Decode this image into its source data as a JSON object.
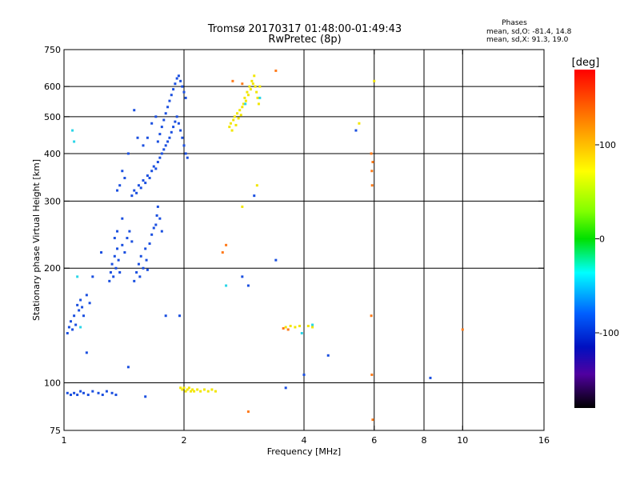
{
  "header": {
    "title_line1": "Tromsø 20170317 01:48:00-01:49:43",
    "title_line2": "RwPretec (8p)"
  },
  "stats": {
    "heading": "Phases",
    "line_o": "mean, sd,O: -81.4, 14.8",
    "line_x": "mean, sd,X:  91.3, 19.0"
  },
  "colorbar": {
    "label": "[deg]",
    "ticks": [
      {
        "value": 100,
        "label": "100"
      },
      {
        "value": 0,
        "label": "0"
      },
      {
        "value": -100,
        "label": "-100"
      }
    ],
    "range": [
      -180,
      180
    ],
    "colors": {
      "top": "#ff0000",
      "orange": "#ff8000",
      "yellow": "#ffff00",
      "green": "#00d000",
      "cyan": "#00ffff",
      "blue": "#0050ff",
      "violet": "#4000a0",
      "bottom": "#000000"
    }
  },
  "chart_data": {
    "type": "scatter",
    "xlabel": "Frequency [MHz]",
    "ylabel": "Stationary phase Virtual Height [km]",
    "xscale": "log",
    "yscale": "log",
    "xlim": [
      1,
      16
    ],
    "ylim": [
      75,
      750
    ],
    "x_ticks": [
      {
        "value": 1,
        "label": "1"
      },
      {
        "value": 2,
        "label": "2"
      },
      {
        "value": 4,
        "label": "4"
      },
      {
        "value": 6,
        "label": "6"
      },
      {
        "value": 8,
        "label": "8"
      },
      {
        "value": 10,
        "label": "10"
      },
      {
        "value": 16,
        "label": "16"
      }
    ],
    "y_ticks": [
      {
        "value": 75,
        "label": "75"
      },
      {
        "value": 100,
        "label": "100"
      },
      {
        "value": 200,
        "label": "200"
      },
      {
        "value": 300,
        "label": "300"
      },
      {
        "value": 400,
        "label": "400"
      },
      {
        "value": 500,
        "label": "500"
      },
      {
        "value": 600,
        "label": "600"
      },
      {
        "value": 750,
        "label": "750"
      }
    ],
    "x_gridlines": [
      2,
      4,
      6,
      8,
      10
    ],
    "y_gridlines": [
      100,
      200,
      300,
      400,
      500,
      600
    ],
    "series": [
      {
        "points": [
          [
            1.02,
            94
          ],
          [
            1.04,
            93
          ],
          [
            1.06,
            94
          ],
          [
            1.08,
            93
          ],
          [
            1.1,
            95
          ],
          [
            1.12,
            94
          ],
          [
            1.15,
            93
          ],
          [
            1.18,
            95
          ],
          [
            1.22,
            94
          ],
          [
            1.25,
            93
          ],
          [
            1.28,
            95
          ],
          [
            1.32,
            94
          ],
          [
            1.35,
            93
          ],
          [
            1.02,
            135
          ],
          [
            1.03,
            140
          ],
          [
            1.04,
            145
          ],
          [
            1.05,
            138
          ],
          [
            1.06,
            150
          ],
          [
            1.07,
            142
          ],
          [
            1.08,
            160
          ],
          [
            1.09,
            155
          ],
          [
            1.1,
            165
          ],
          [
            1.11,
            158
          ],
          [
            1.12,
            150
          ],
          [
            1.14,
            170
          ],
          [
            1.16,
            162
          ],
          [
            1.3,
            185
          ],
          [
            1.31,
            195
          ],
          [
            1.32,
            205
          ],
          [
            1.33,
            190
          ],
          [
            1.34,
            215
          ],
          [
            1.35,
            200
          ],
          [
            1.36,
            225
          ],
          [
            1.37,
            210
          ],
          [
            1.38,
            195
          ],
          [
            1.4,
            230
          ],
          [
            1.42,
            220
          ],
          [
            1.44,
            240
          ],
          [
            1.46,
            250
          ],
          [
            1.48,
            235
          ],
          [
            1.5,
            185
          ],
          [
            1.52,
            195
          ],
          [
            1.54,
            205
          ],
          [
            1.55,
            190
          ],
          [
            1.56,
            215
          ],
          [
            1.58,
            200
          ],
          [
            1.6,
            225
          ],
          [
            1.61,
            210
          ],
          [
            1.62,
            198
          ],
          [
            1.64,
            232
          ],
          [
            1.66,
            245
          ],
          [
            1.68,
            255
          ],
          [
            1.7,
            260
          ],
          [
            1.71,
            275
          ],
          [
            1.72,
            290
          ],
          [
            1.74,
            270
          ],
          [
            1.76,
            250
          ],
          [
            1.48,
            310
          ],
          [
            1.5,
            320
          ],
          [
            1.52,
            315
          ],
          [
            1.54,
            330
          ],
          [
            1.56,
            325
          ],
          [
            1.58,
            340
          ],
          [
            1.6,
            335
          ],
          [
            1.62,
            350
          ],
          [
            1.64,
            345
          ],
          [
            1.66,
            360
          ],
          [
            1.68,
            370
          ],
          [
            1.7,
            365
          ],
          [
            1.72,
            380
          ],
          [
            1.74,
            390
          ],
          [
            1.76,
            400
          ],
          [
            1.78,
            410
          ],
          [
            1.8,
            420
          ],
          [
            1.82,
            430
          ],
          [
            1.84,
            440
          ],
          [
            1.86,
            455
          ],
          [
            1.88,
            470
          ],
          [
            1.9,
            485
          ],
          [
            1.92,
            500
          ],
          [
            1.94,
            480
          ],
          [
            1.96,
            460
          ],
          [
            1.98,
            440
          ],
          [
            2.0,
            420
          ],
          [
            2.02,
            400
          ],
          [
            2.04,
            390
          ],
          [
            1.72,
            430
          ],
          [
            1.74,
            450
          ],
          [
            1.76,
            470
          ],
          [
            1.78,
            490
          ],
          [
            1.8,
            510
          ],
          [
            1.82,
            530
          ],
          [
            1.84,
            550
          ],
          [
            1.86,
            570
          ],
          [
            1.88,
            590
          ],
          [
            1.9,
            610
          ],
          [
            1.92,
            630
          ],
          [
            1.94,
            640
          ],
          [
            1.96,
            620
          ],
          [
            1.98,
            600
          ],
          [
            2.0,
            580
          ],
          [
            2.02,
            560
          ],
          [
            1.45,
            400
          ],
          [
            1.5,
            520
          ],
          [
            1.4,
            360
          ],
          [
            1.42,
            345
          ],
          [
            1.38,
            330
          ],
          [
            1.36,
            320
          ],
          [
            1.58,
            420
          ],
          [
            1.62,
            440
          ],
          [
            1.66,
            480
          ],
          [
            1.7,
            500
          ],
          [
            1.53,
            440
          ],
          [
            1.4,
            270
          ],
          [
            1.36,
            250
          ],
          [
            1.34,
            240
          ],
          [
            1.24,
            220
          ],
          [
            1.18,
            190
          ],
          [
            1.14,
            120
          ],
          [
            1.45,
            110
          ],
          [
            1.6,
            92
          ],
          [
            1.8,
            150
          ],
          [
            1.95,
            150
          ],
          [
            2.8,
            190
          ],
          [
            2.9,
            180
          ],
          [
            3.0,
            310
          ],
          [
            3.4,
            210
          ],
          [
            3.6,
            97
          ],
          [
            4.0,
            105
          ],
          [
            4.6,
            118
          ],
          [
            5.4,
            460
          ],
          [
            8.3,
            103
          ]
        ]
      },
      {
        "points": [
          [
            2.6,
            470
          ],
          [
            2.62,
            480
          ],
          [
            2.64,
            460
          ],
          [
            2.66,
            490
          ],
          [
            2.68,
            500
          ],
          [
            2.7,
            475
          ],
          [
            2.72,
            510
          ],
          [
            2.74,
            495
          ],
          [
            2.76,
            520
          ],
          [
            2.78,
            505
          ],
          [
            2.8,
            530
          ],
          [
            2.82,
            540
          ],
          [
            2.84,
            560
          ],
          [
            2.86,
            550
          ],
          [
            2.88,
            580
          ],
          [
            2.9,
            570
          ],
          [
            2.92,
            600
          ],
          [
            2.94,
            590
          ],
          [
            2.96,
            620
          ],
          [
            2.98,
            610
          ],
          [
            3.0,
            640
          ],
          [
            3.02,
            600
          ],
          [
            3.04,
            580
          ],
          [
            3.06,
            560
          ],
          [
            3.08,
            540
          ],
          [
            3.1,
            600
          ],
          [
            1.96,
            97
          ],
          [
            1.98,
            96
          ],
          [
            2.0,
            97
          ],
          [
            2.02,
            95
          ],
          [
            2.04,
            96
          ],
          [
            2.06,
            97
          ],
          [
            2.08,
            95
          ],
          [
            2.1,
            96
          ],
          [
            2.12,
            95
          ],
          [
            2.16,
            96
          ],
          [
            2.2,
            95
          ],
          [
            2.25,
            96
          ],
          [
            2.3,
            95
          ],
          [
            2.35,
            96
          ],
          [
            2.4,
            95
          ],
          [
            3.05,
            330
          ],
          [
            2.8,
            290
          ],
          [
            5.5,
            480
          ],
          [
            6.0,
            620
          ],
          [
            3.6,
            140
          ],
          [
            3.7,
            141
          ],
          [
            3.8,
            140
          ],
          [
            3.9,
            141
          ],
          [
            4.1,
            141
          ],
          [
            4.2,
            140
          ]
        ]
      },
      {
        "points": [
          [
            2.65,
            620
          ],
          [
            2.8,
            610
          ],
          [
            2.55,
            230
          ],
          [
            2.5,
            220
          ],
          [
            2.9,
            84
          ],
          [
            3.4,
            660
          ],
          [
            3.55,
            139
          ],
          [
            3.65,
            138
          ],
          [
            5.9,
            400
          ],
          [
            5.95,
            380
          ],
          [
            5.92,
            360
          ],
          [
            5.93,
            330
          ],
          [
            5.9,
            150
          ],
          [
            5.95,
            80
          ],
          [
            5.92,
            105
          ],
          [
            10.0,
            138
          ]
        ]
      },
      {
        "points": [
          [
            1.05,
            460
          ],
          [
            1.06,
            430
          ],
          [
            1.08,
            190
          ],
          [
            1.1,
            140
          ],
          [
            2.55,
            180
          ],
          [
            2.85,
            540
          ],
          [
            3.1,
            560
          ],
          [
            4.2,
            142
          ],
          [
            3.95,
            135
          ]
        ]
      }
    ]
  }
}
